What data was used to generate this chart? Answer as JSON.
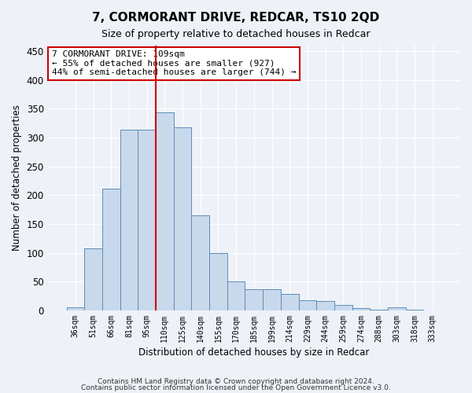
{
  "title": "7, CORMORANT DRIVE, REDCAR, TS10 2QD",
  "subtitle": "Size of property relative to detached houses in Redcar",
  "xlabel": "Distribution of detached houses by size in Redcar",
  "ylabel": "Number of detached properties",
  "categories": [
    "36sqm",
    "51sqm",
    "66sqm",
    "81sqm",
    "95sqm",
    "110sqm",
    "125sqm",
    "140sqm",
    "155sqm",
    "170sqm",
    "185sqm",
    "199sqm",
    "214sqm",
    "229sqm",
    "244sqm",
    "259sqm",
    "274sqm",
    "288sqm",
    "303sqm",
    "318sqm",
    "333sqm"
  ],
  "values": [
    5,
    107,
    211,
    314,
    314,
    344,
    317,
    165,
    99,
    51,
    37,
    37,
    29,
    18,
    16,
    10,
    4,
    1,
    5,
    1,
    0
  ],
  "bar_color": "#c9d9ec",
  "bar_edge_color": "#5b8db8",
  "vline_x": 4.5,
  "vline_color": "#cc0000",
  "annotation_text": "7 CORMORANT DRIVE: 109sqm\n← 55% of detached houses are smaller (927)\n44% of semi-detached houses are larger (744) →",
  "annotation_box_color": "#ffffff",
  "annotation_box_edge": "#cc0000",
  "ylim": [
    0,
    460
  ],
  "yticks": [
    0,
    50,
    100,
    150,
    200,
    250,
    300,
    350,
    400,
    450
  ],
  "footer1": "Contains HM Land Registry data © Crown copyright and database right 2024.",
  "footer2": "Contains public sector information licensed under the Open Government Licence v3.0.",
  "bg_color": "#eef2f8",
  "plot_bg_color": "#eef2f8"
}
